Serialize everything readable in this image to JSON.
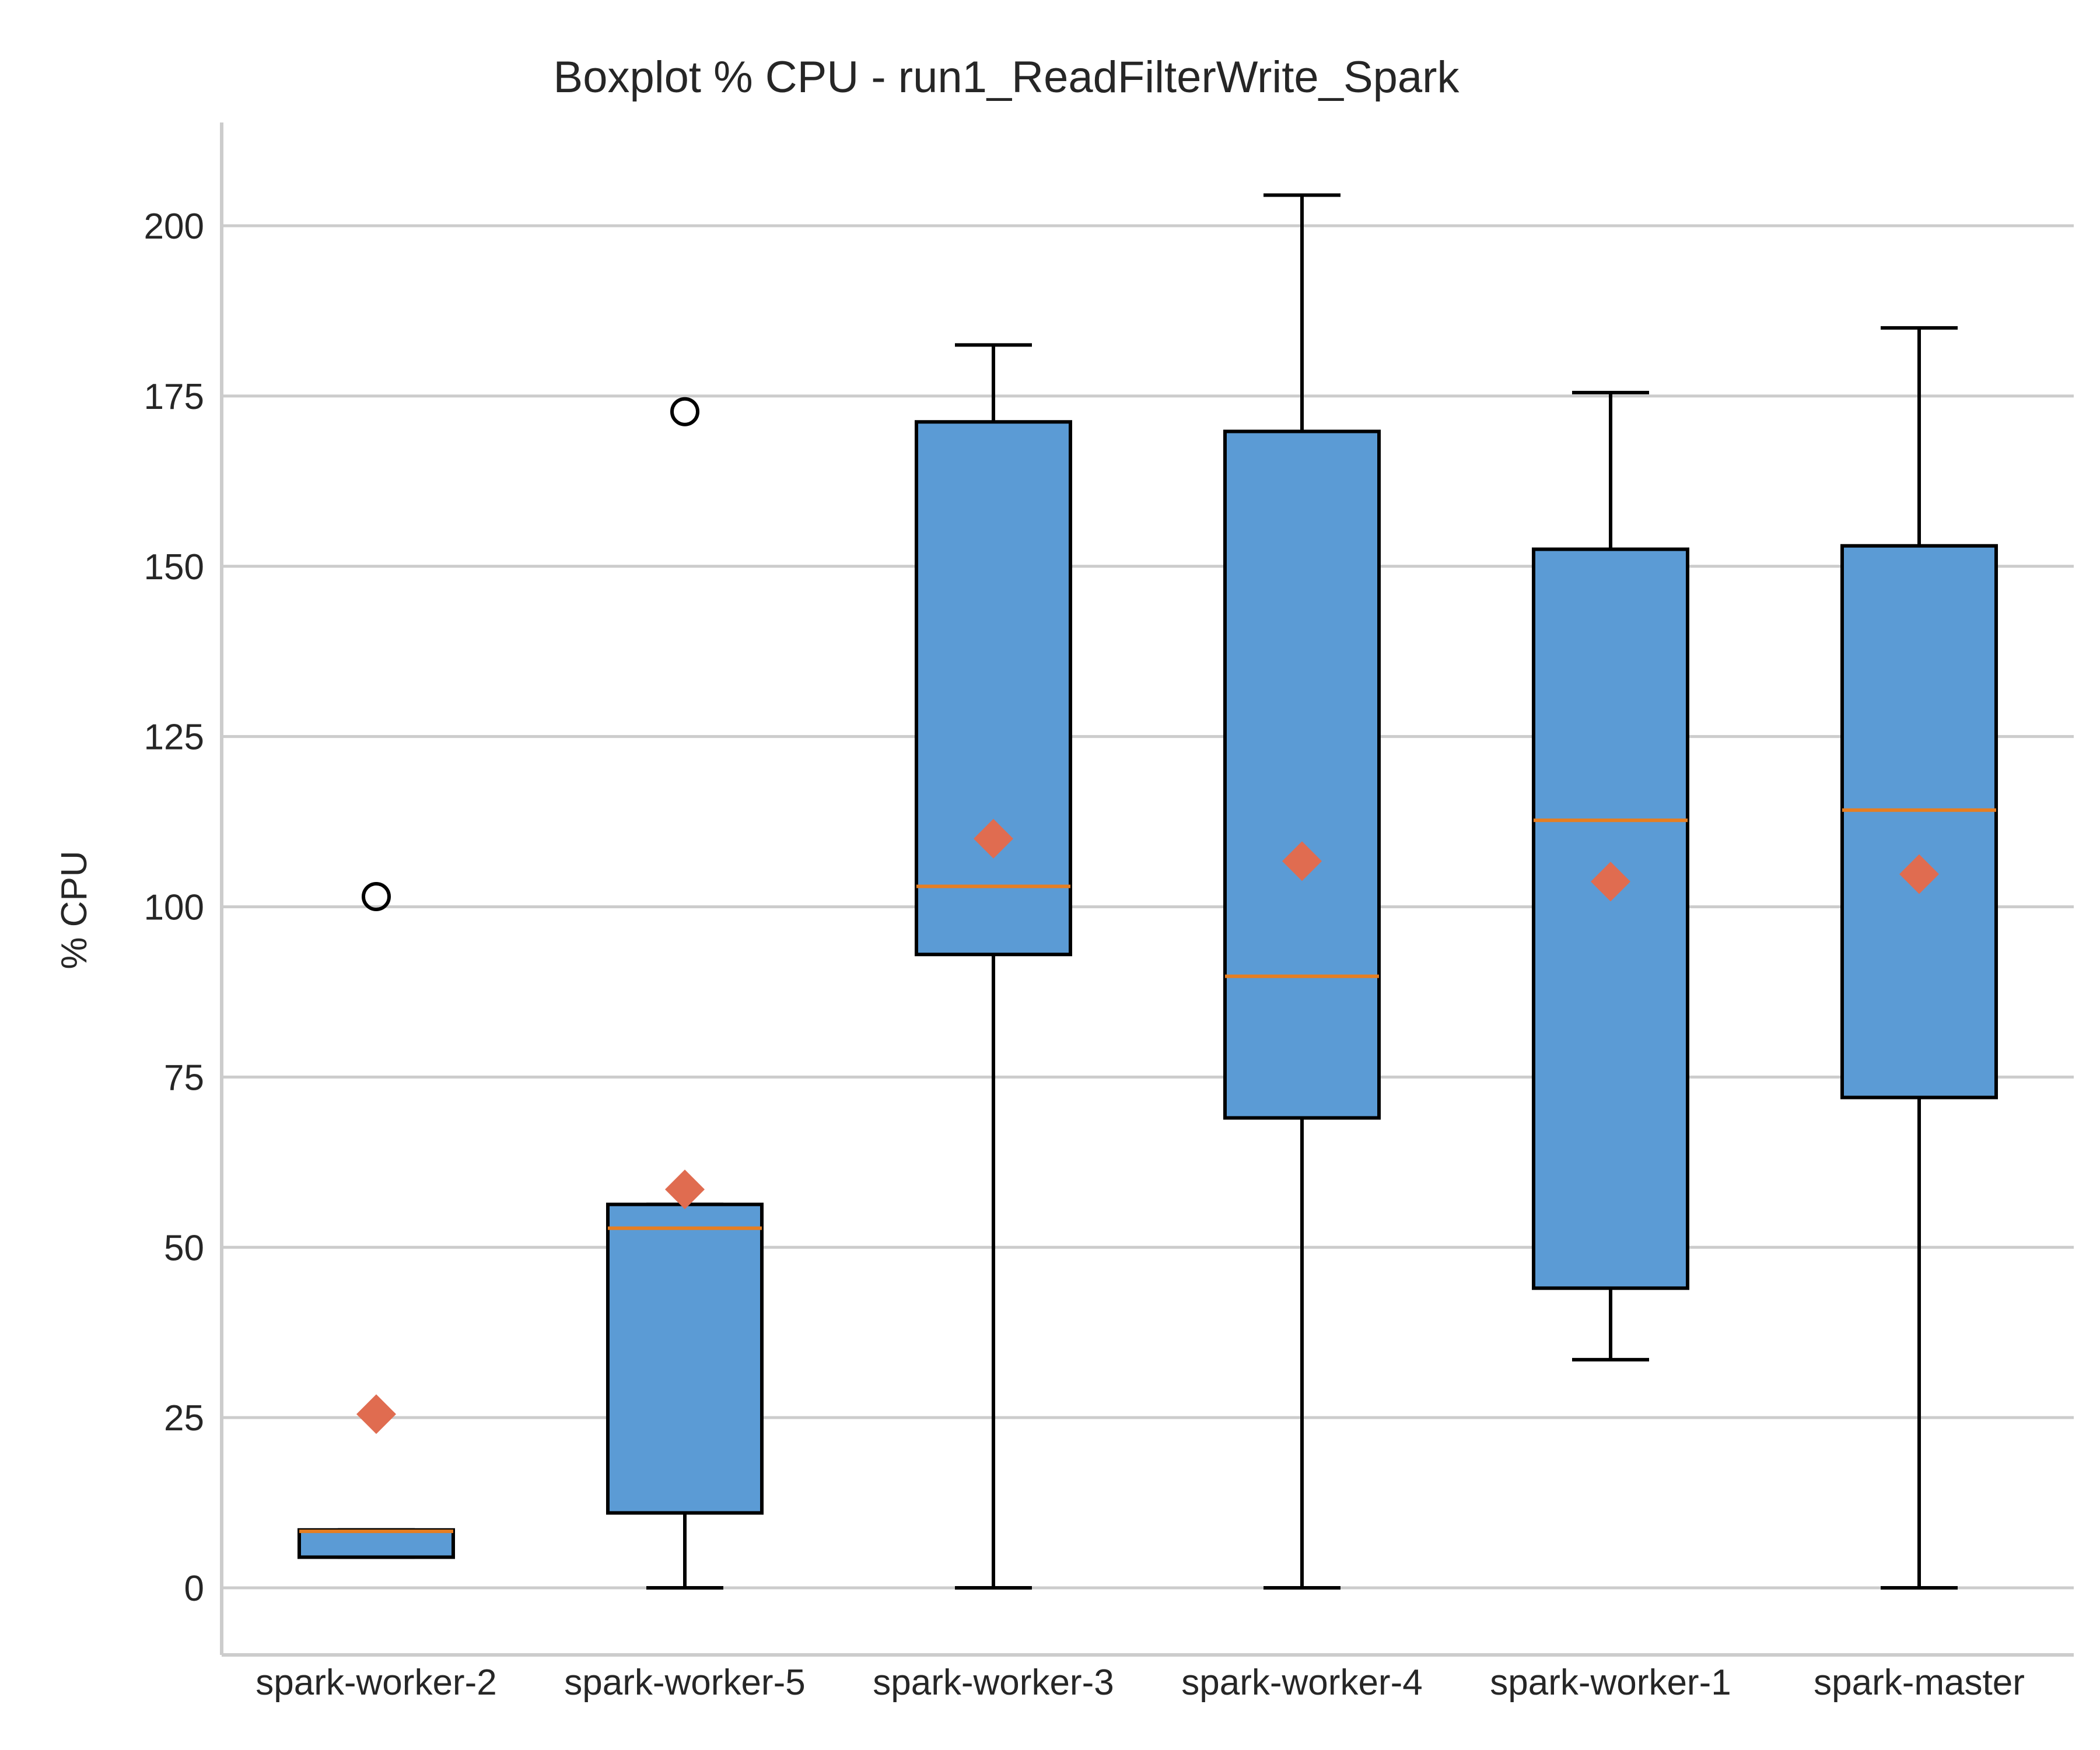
{
  "chart_data": {
    "type": "boxplot",
    "title": "Boxplot % CPU - run1_ReadFilterWrite_Spark",
    "ylabel": "% CPU",
    "xlabel": "",
    "ylim": [
      -10,
      215
    ],
    "yticks": [
      0,
      25,
      50,
      75,
      100,
      125,
      150,
      175,
      200
    ],
    "grid": "horizontal",
    "colors": {
      "box_fill": "#5b9bd5",
      "median": "#e67e22",
      "mean_marker": "#e06c50",
      "grid": "#cccccc"
    },
    "categories": [
      "spark-worker-2",
      "spark-worker-5",
      "spark-worker-3",
      "spark-worker-4",
      "spark-worker-1",
      "spark-master"
    ],
    "boxes": [
      {
        "whisker_low": 4.5,
        "q1": 4.5,
        "median": 8.3,
        "q3": 8.5,
        "whisker_high": 8.5,
        "mean": 25.5,
        "fliers": [
          101.5
        ]
      },
      {
        "whisker_low": 0,
        "q1": 11,
        "median": 52.8,
        "q3": 56.3,
        "whisker_high": 56.3,
        "mean": 58.5,
        "fliers": [
          172.7
        ]
      },
      {
        "whisker_low": 0,
        "q1": 93,
        "median": 103,
        "q3": 171.2,
        "whisker_high": 182.5,
        "mean": 110,
        "fliers": []
      },
      {
        "whisker_low": 0,
        "q1": 69,
        "median": 89.8,
        "q3": 169.8,
        "whisker_high": 204.5,
        "mean": 106.7,
        "fliers": []
      },
      {
        "whisker_low": 33.5,
        "q1": 44,
        "median": 112.7,
        "q3": 152.5,
        "whisker_high": 175.5,
        "mean": 103.7,
        "fliers": []
      },
      {
        "whisker_low": 0,
        "q1": 72,
        "median": 114.2,
        "q3": 153,
        "whisker_high": 185,
        "mean": 104.8,
        "fliers": []
      }
    ]
  }
}
